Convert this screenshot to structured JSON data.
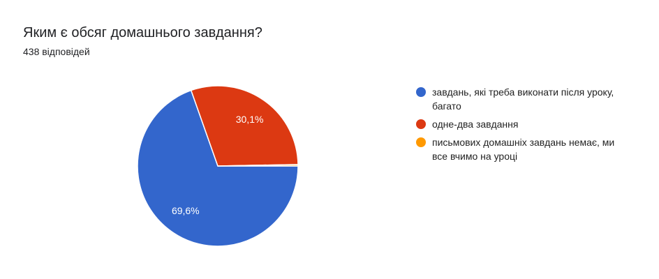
{
  "chart_data": {
    "type": "pie",
    "title": "Яким є обсяг домашнього завдання?",
    "subtitle": "438 відповідей",
    "categories": [
      "завдань, які треба виконати після уроку, багато",
      "одне-два завдання",
      "письмових домашніх завдань немає, ми все вчимо на уроці"
    ],
    "values": [
      69.6,
      30.1,
      0.3
    ],
    "value_labels": [
      "69,6%",
      "30,1%",
      null
    ],
    "colors": [
      "#3366cc",
      "#dc3912",
      "#ff9900"
    ],
    "legend": "right"
  }
}
